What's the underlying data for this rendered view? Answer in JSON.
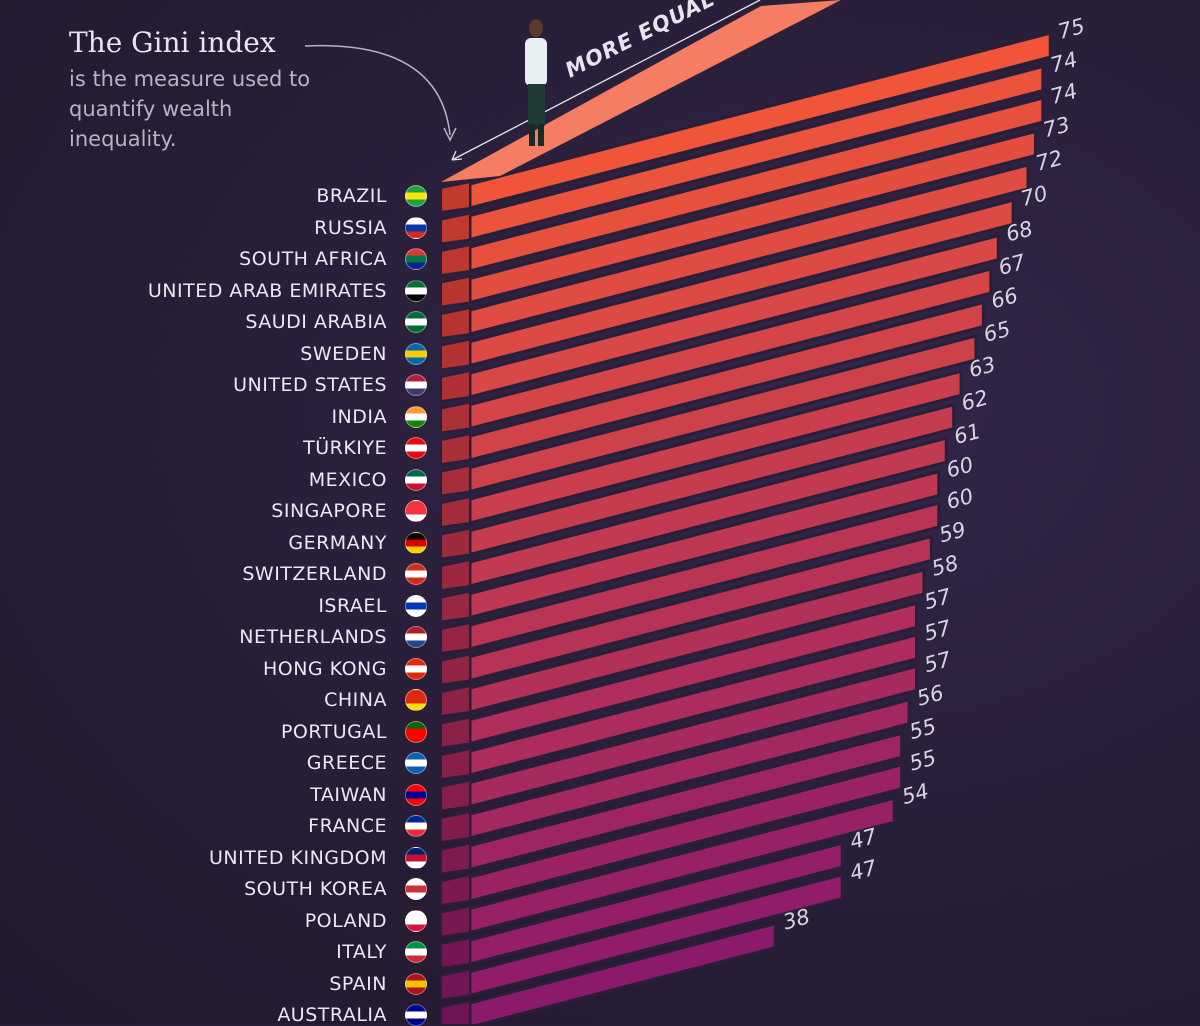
{
  "annotation": {
    "title": "The Gini index",
    "body": "is the measure used to quantify wealth inequality."
  },
  "axis_label": "MORE EQUAL",
  "colors": {
    "background": "#2a1f38",
    "bar_top": "#f0553a",
    "bar_bottom": "#8c1a6c",
    "roof": "#f47d64"
  },
  "chart_data": {
    "type": "bar",
    "orientation": "horizontal, isometric 3D",
    "title": "",
    "categories": [
      "BRAZIL",
      "RUSSIA",
      "SOUTH AFRICA",
      "UNITED ARAB EMIRATES",
      "SAUDI ARABIA",
      "SWEDEN",
      "UNITED STATES",
      "INDIA",
      "TÜRKIYE",
      "MEXICO",
      "SINGAPORE",
      "GERMANY",
      "SWITZERLAND",
      "ISRAEL",
      "NETHERLANDS",
      "HONG KONG",
      "CHINA",
      "PORTUGAL",
      "GREECE",
      "TAIWAN",
      "FRANCE",
      "UNITED KINGDOM",
      "SOUTH KOREA",
      "POLAND",
      "ITALY",
      "SPAIN",
      "AUSTRALIA"
    ],
    "values": [
      75,
      74,
      74,
      73,
      72,
      70,
      68,
      67,
      66,
      65,
      63,
      62,
      61,
      60,
      60,
      59,
      58,
      57,
      57,
      57,
      56,
      55,
      55,
      54,
      47,
      47,
      38
    ],
    "data_labels": [
      "75",
      "74",
      "74",
      "73",
      "72",
      "70",
      "68",
      "67",
      "66",
      "65",
      "63",
      "62",
      "61",
      "60",
      "60",
      "59",
      "58",
      "57",
      "57",
      "57",
      "56",
      "55",
      "55",
      "54",
      "47",
      "47",
      "38"
    ],
    "flags": [
      [
        "#229e45",
        "#f8e509",
        "#229e45"
      ],
      [
        "#ffffff",
        "#0039a6",
        "#d52b1e"
      ],
      [
        "#de3831",
        "#007a4d",
        "#002395"
      ],
      [
        "#00732f",
        "#ffffff",
        "#000000"
      ],
      [
        "#006c35",
        "#ffffff",
        "#006c35"
      ],
      [
        "#006aa7",
        "#fecc00",
        "#006aa7"
      ],
      [
        "#b22234",
        "#ffffff",
        "#3c3b6e"
      ],
      [
        "#ff9933",
        "#ffffff",
        "#138808"
      ],
      [
        "#e30a17",
        "#ffffff",
        "#e30a17"
      ],
      [
        "#006847",
        "#ffffff",
        "#ce1126"
      ],
      [
        "#ef3340",
        "#ef3340",
        "#ffffff"
      ],
      [
        "#000000",
        "#dd0000",
        "#ffce00"
      ],
      [
        "#d52b1e",
        "#ffffff",
        "#d52b1e"
      ],
      [
        "#ffffff",
        "#0038b8",
        "#ffffff"
      ],
      [
        "#ae1c28",
        "#ffffff",
        "#21468b"
      ],
      [
        "#de2910",
        "#ffffff",
        "#de2910"
      ],
      [
        "#de2910",
        "#de2910",
        "#ffde00"
      ],
      [
        "#006600",
        "#ff0000",
        "#ff0000"
      ],
      [
        "#0d5eaf",
        "#ffffff",
        "#0d5eaf"
      ],
      [
        "#fe0000",
        "#000095",
        "#fe0000"
      ],
      [
        "#002395",
        "#ffffff",
        "#ed2939"
      ],
      [
        "#012169",
        "#c8102e",
        "#ffffff"
      ],
      [
        "#ffffff",
        "#cd2e3a",
        "#ffffff"
      ],
      [
        "#ffffff",
        "#ffffff",
        "#dc143c"
      ],
      [
        "#009246",
        "#ffffff",
        "#ce2b37"
      ],
      [
        "#aa151b",
        "#f1bf00",
        "#aa151b"
      ],
      [
        "#00008b",
        "#ffffff",
        "#00008b"
      ]
    ]
  }
}
